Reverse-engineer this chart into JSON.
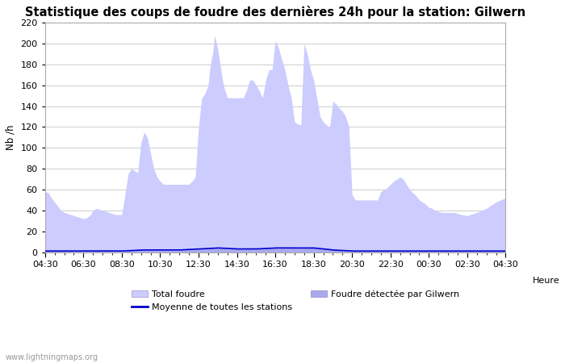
{
  "title": "Statistique des coups de foudre des dernières 24h pour la station: Gilwern",
  "xlabel": "Heure",
  "ylabel": "Nb /h",
  "ylim": [
    0,
    220
  ],
  "yticks": [
    0,
    20,
    40,
    60,
    80,
    100,
    120,
    140,
    160,
    180,
    200,
    220
  ],
  "x_labels": [
    "04:30",
    "06:30",
    "08:30",
    "10:30",
    "12:30",
    "14:30",
    "16:30",
    "18:30",
    "20:30",
    "22:30",
    "00:30",
    "02:30",
    "04:30"
  ],
  "watermark": "www.lightningmaps.org",
  "legend_total": "Total foudre",
  "legend_moyenne": "Moyenne de toutes les stations",
  "legend_gilwern": "Foudre détectée par Gilwern",
  "fill_total_color": "#ccccff",
  "fill_gilwern_color": "#aaaaee",
  "line_moyenne_color": "#0000cc",
  "background_color": "#ffffff",
  "grid_color": "#cccccc",
  "title_fontsize": 10.5,
  "label_fontsize": 8.5,
  "tick_fontsize": 8,
  "ctrl_times": [
    0,
    10,
    20,
    30,
    40,
    50,
    60,
    70,
    80,
    90,
    100,
    110,
    120,
    130,
    140,
    150,
    160,
    170,
    180,
    190,
    200,
    210,
    220,
    230,
    240,
    250,
    260,
    270,
    280,
    290,
    300,
    310,
    320,
    330,
    340,
    350,
    360,
    370,
    380,
    390,
    400,
    410,
    420,
    430,
    440,
    450,
    460,
    470,
    480,
    490,
    500,
    510,
    515,
    520,
    525,
    530,
    540,
    550,
    555,
    560,
    570,
    580,
    590,
    600,
    610,
    620,
    630,
    640,
    650,
    660,
    670,
    680,
    690,
    700,
    710,
    720,
    730,
    740,
    750,
    760,
    770,
    780,
    790,
    800,
    810,
    820,
    830,
    840,
    850,
    860,
    870,
    880,
    890,
    900,
    910,
    920,
    930,
    940,
    950,
    960,
    970,
    980,
    990,
    1000,
    1020,
    1040,
    1050,
    1060,
    1070,
    1080,
    1090,
    1100,
    1110,
    1120,
    1130,
    1140,
    1150,
    1160,
    1170,
    1180,
    1190,
    1200,
    1210,
    1220,
    1230,
    1240,
    1250,
    1260,
    1270,
    1280,
    1290,
    1300,
    1320,
    1350,
    1380,
    1410,
    1440
  ],
  "ctrl_values": [
    58,
    57,
    52,
    48,
    44,
    40,
    38,
    37,
    36,
    35,
    34,
    33,
    32,
    33,
    35,
    40,
    42,
    41,
    40,
    39,
    38,
    37,
    36,
    36,
    36,
    55,
    75,
    80,
    78,
    76,
    105,
    115,
    110,
    95,
    80,
    72,
    68,
    65,
    65,
    65,
    65,
    65,
    65,
    65,
    65,
    65,
    68,
    72,
    120,
    148,
    152,
    160,
    175,
    185,
    192,
    208,
    195,
    175,
    165,
    158,
    148,
    148,
    148,
    148,
    148,
    148,
    155,
    165,
    165,
    160,
    155,
    148,
    165,
    175,
    175,
    203,
    196,
    185,
    175,
    160,
    148,
    125,
    123,
    122,
    200,
    190,
    175,
    165,
    148,
    130,
    125,
    122,
    120,
    145,
    142,
    138,
    135,
    130,
    120,
    55,
    50,
    50,
    50,
    50,
    50,
    50,
    58,
    60,
    62,
    65,
    68,
    70,
    72,
    70,
    65,
    60,
    57,
    54,
    50,
    48,
    46,
    43,
    42,
    40,
    39,
    38,
    38,
    38,
    38,
    38,
    37,
    36,
    35,
    38,
    42,
    48,
    52
  ],
  "ctrl_m_times": [
    0,
    60,
    120,
    180,
    240,
    300,
    360,
    420,
    480,
    540,
    600,
    660,
    720,
    780,
    840,
    900,
    960,
    1020,
    1080,
    1140,
    1200,
    1440
  ],
  "ctrl_m_values": [
    1,
    1,
    1,
    1,
    1,
    2,
    2,
    2,
    3,
    4,
    3,
    3,
    4,
    4,
    4,
    2,
    1,
    1,
    1,
    1,
    1,
    1
  ]
}
